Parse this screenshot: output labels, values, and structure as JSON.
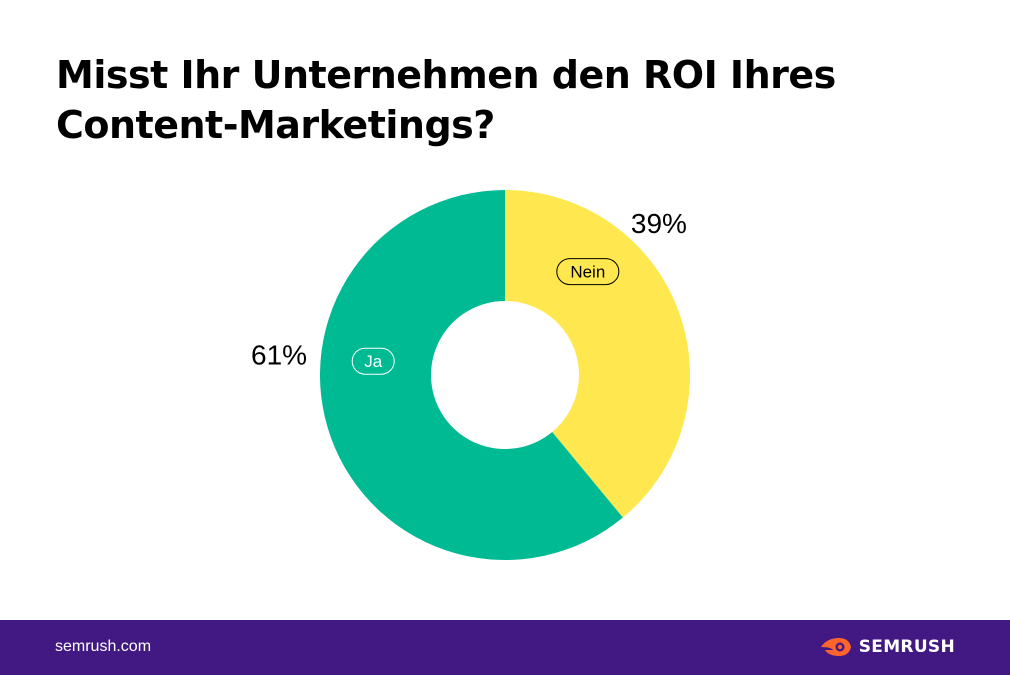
{
  "title": "Misst Ihr Unternehmen den ROI Ihres Content-Marketings?",
  "colors": {
    "ja": "#00BA93",
    "nein": "#FFE84F",
    "footer": "#421983",
    "logo_accent": "#FF642D"
  },
  "chart_data": {
    "type": "pie",
    "donut": true,
    "title": "Misst Ihr Unternehmen den ROI Ihres Content-Marketings?",
    "slices": [
      {
        "label": "Nein",
        "value": 39,
        "value_label": "39%",
        "color": "#FFE84F",
        "label_border": "#000000"
      },
      {
        "label": "Ja",
        "value": 61,
        "value_label": "61%",
        "color": "#00BA93",
        "label_border": "#ffffff"
      }
    ],
    "legend": "none"
  },
  "footer": {
    "url": "semrush.com",
    "brand": "SEMRUSH",
    "logo_icon": "semrush-flame-icon"
  }
}
